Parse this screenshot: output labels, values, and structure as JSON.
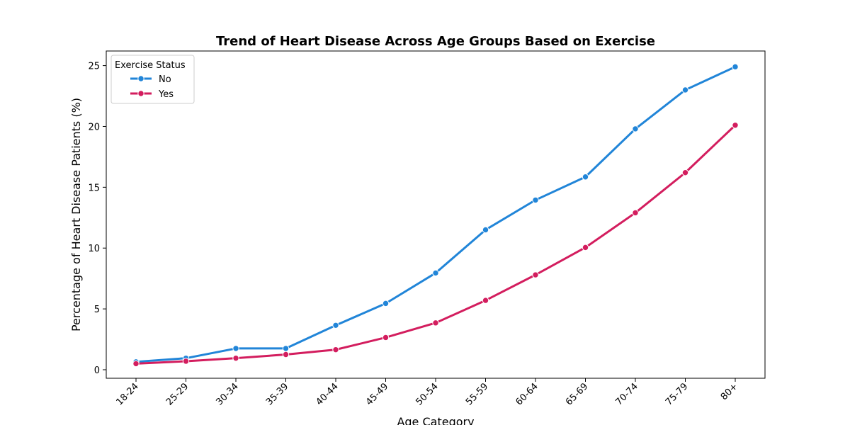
{
  "chart_data": {
    "type": "line",
    "title": "Trend of Heart Disease Across Age Groups Based on Exercise",
    "xlabel": "Age Category",
    "ylabel": "Percentage of Heart Disease Patients (%)",
    "categories": [
      "18-24",
      "25-29",
      "30-34",
      "35-39",
      "40-44",
      "45-49",
      "50-54",
      "55-59",
      "60-64",
      "65-69",
      "70-74",
      "75-79",
      "80+"
    ],
    "ylim": [
      -0.7,
      26.2
    ],
    "yticks": [
      0,
      5,
      10,
      15,
      20,
      25
    ],
    "grid": false,
    "legend": {
      "title": "Exercise Status",
      "position": "top-left"
    },
    "series": [
      {
        "name": "No",
        "color": "#2185d8",
        "values": [
          0.65,
          0.95,
          1.75,
          1.75,
          3.65,
          5.45,
          7.95,
          11.5,
          13.95,
          15.85,
          19.8,
          23.0,
          24.9
        ]
      },
      {
        "name": "Yes",
        "color": "#d31d5e",
        "values": [
          0.5,
          0.7,
          0.95,
          1.25,
          1.65,
          2.65,
          3.85,
          5.7,
          7.8,
          10.05,
          12.9,
          16.2,
          20.1
        ]
      }
    ]
  }
}
